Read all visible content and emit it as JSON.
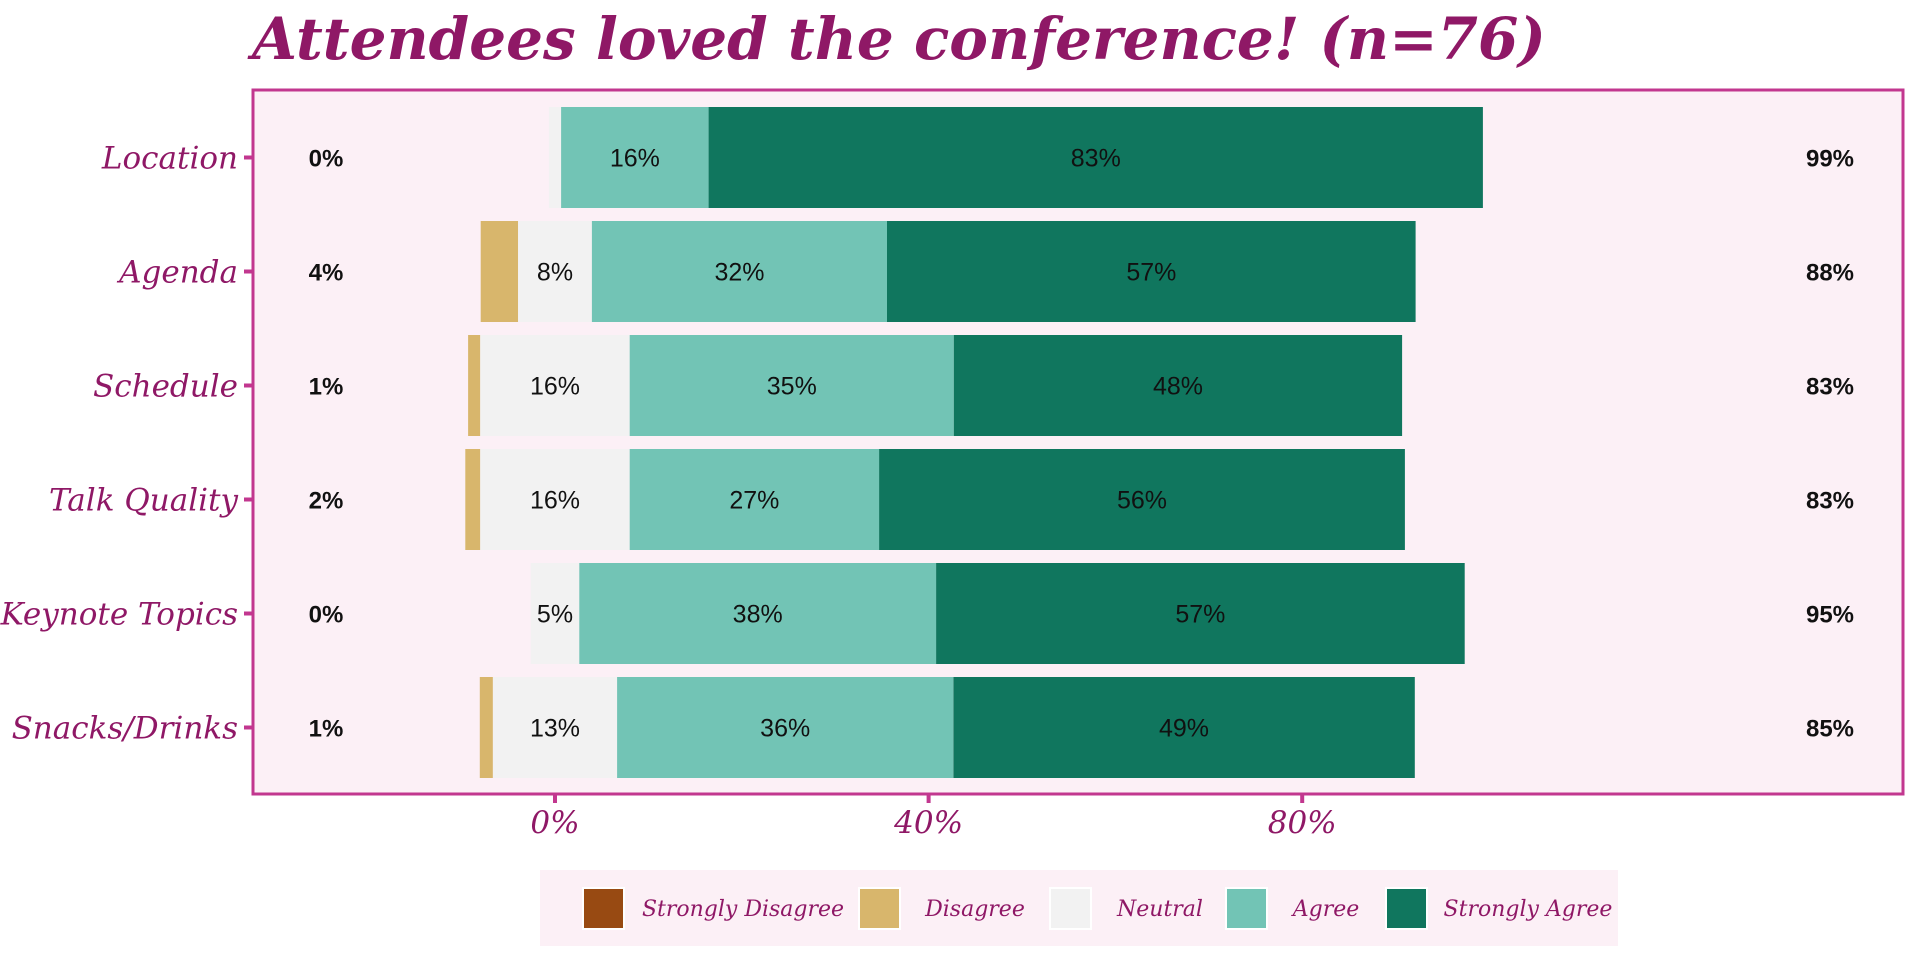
{
  "chart_data": {
    "type": "bar",
    "orientation": "horizontal",
    "stacking": "diverging",
    "title": "Attendees loved the conference! (n=76)",
    "xlabel": "",
    "ylabel": "",
    "xlim": [
      -0.08,
      1.0
    ],
    "x_ticks": [
      {
        "value": 0,
        "label": "0%"
      },
      {
        "value": 0.4,
        "label": "40%"
      },
      {
        "value": 0.8,
        "label": "80%"
      }
    ],
    "grid": false,
    "legend_position": "bottom",
    "categories": [
      "Location",
      "Agenda",
      "Schedule",
      "Talk Quality",
      "Keynote Topics",
      "Snacks/Drinks"
    ],
    "series": [
      {
        "name": "Strongly Disagree",
        "color": "#984a12",
        "values": [
          0,
          0,
          0,
          0,
          0,
          0
        ]
      },
      {
        "name": "Disagree",
        "color": "#d8b66c",
        "values": [
          0,
          0.04,
          0.013,
          0.016,
          0,
          0.014
        ]
      },
      {
        "name": "Neutral",
        "color": "#f2f2f2",
        "values": [
          0.013,
          0.079,
          0.16,
          0.16,
          0.052,
          0.133
        ]
      },
      {
        "name": "Agree",
        "color": "#72c4b5",
        "values": [
          0.158,
          0.316,
          0.347,
          0.267,
          0.382,
          0.36
        ]
      },
      {
        "name": "Strongly Agree",
        "color": "#10765e",
        "values": [
          0.829,
          0.566,
          0.48,
          0.563,
          0.566,
          0.494
        ]
      }
    ],
    "segment_labels": [
      [
        "",
        "",
        "",
        "16%",
        "83%"
      ],
      [
        "",
        "",
        "8%",
        "32%",
        "57%"
      ],
      [
        "",
        "",
        "16%",
        "35%",
        "48%"
      ],
      [
        "",
        "",
        "16%",
        "27%",
        "56%"
      ],
      [
        "",
        "",
        "5%",
        "38%",
        "57%"
      ],
      [
        "",
        "",
        "13%",
        "36%",
        "49%"
      ]
    ],
    "left_totals": [
      "0%",
      "4%",
      "1%",
      "2%",
      "0%",
      "1%"
    ],
    "right_totals": [
      "99%",
      "88%",
      "83%",
      "83%",
      "95%",
      "85%"
    ]
  },
  "colors": {
    "panel_background": "#fcf0f6",
    "panel_border": "#c2378f",
    "text_accent": "#8f1866",
    "legend_background": "#fcf0f6"
  }
}
